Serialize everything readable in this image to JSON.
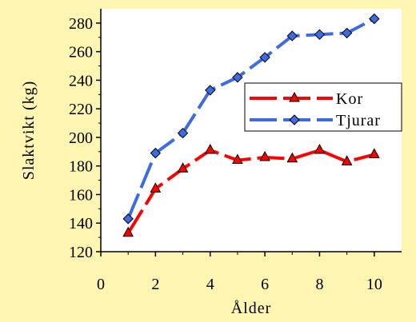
{
  "chart_data": {
    "type": "line",
    "title": "",
    "xlabel": "Ålder",
    "ylabel": "Slaktvikt (kg)",
    "xlim": [
      0,
      11
    ],
    "ylim": [
      120,
      290
    ],
    "xticks": [
      "0",
      "2",
      "4",
      "6",
      "8",
      "10"
    ],
    "yticks": [
      "120",
      "140",
      "160",
      "180",
      "200",
      "220",
      "240",
      "260",
      "280"
    ],
    "grid": false,
    "legend_position": "right",
    "series": [
      {
        "name": "Kor",
        "color": "#FF0000",
        "marker_color": "#FF0000",
        "marker": "triangle",
        "x": [
          1,
          2,
          3,
          4,
          5,
          6,
          7,
          8,
          9,
          10
        ],
        "y": [
          133,
          164,
          178,
          191,
          184,
          186,
          185,
          191,
          183,
          188
        ]
      },
      {
        "name": "Tjurar",
        "color": "#3F6BE0",
        "marker_color": "#3F6BE0",
        "marker": "diamond",
        "x": [
          1,
          2,
          3,
          4,
          5,
          6,
          7,
          8,
          9,
          10
        ],
        "y": [
          143,
          189,
          203,
          233,
          242,
          256,
          271,
          272,
          273,
          283
        ]
      }
    ]
  }
}
